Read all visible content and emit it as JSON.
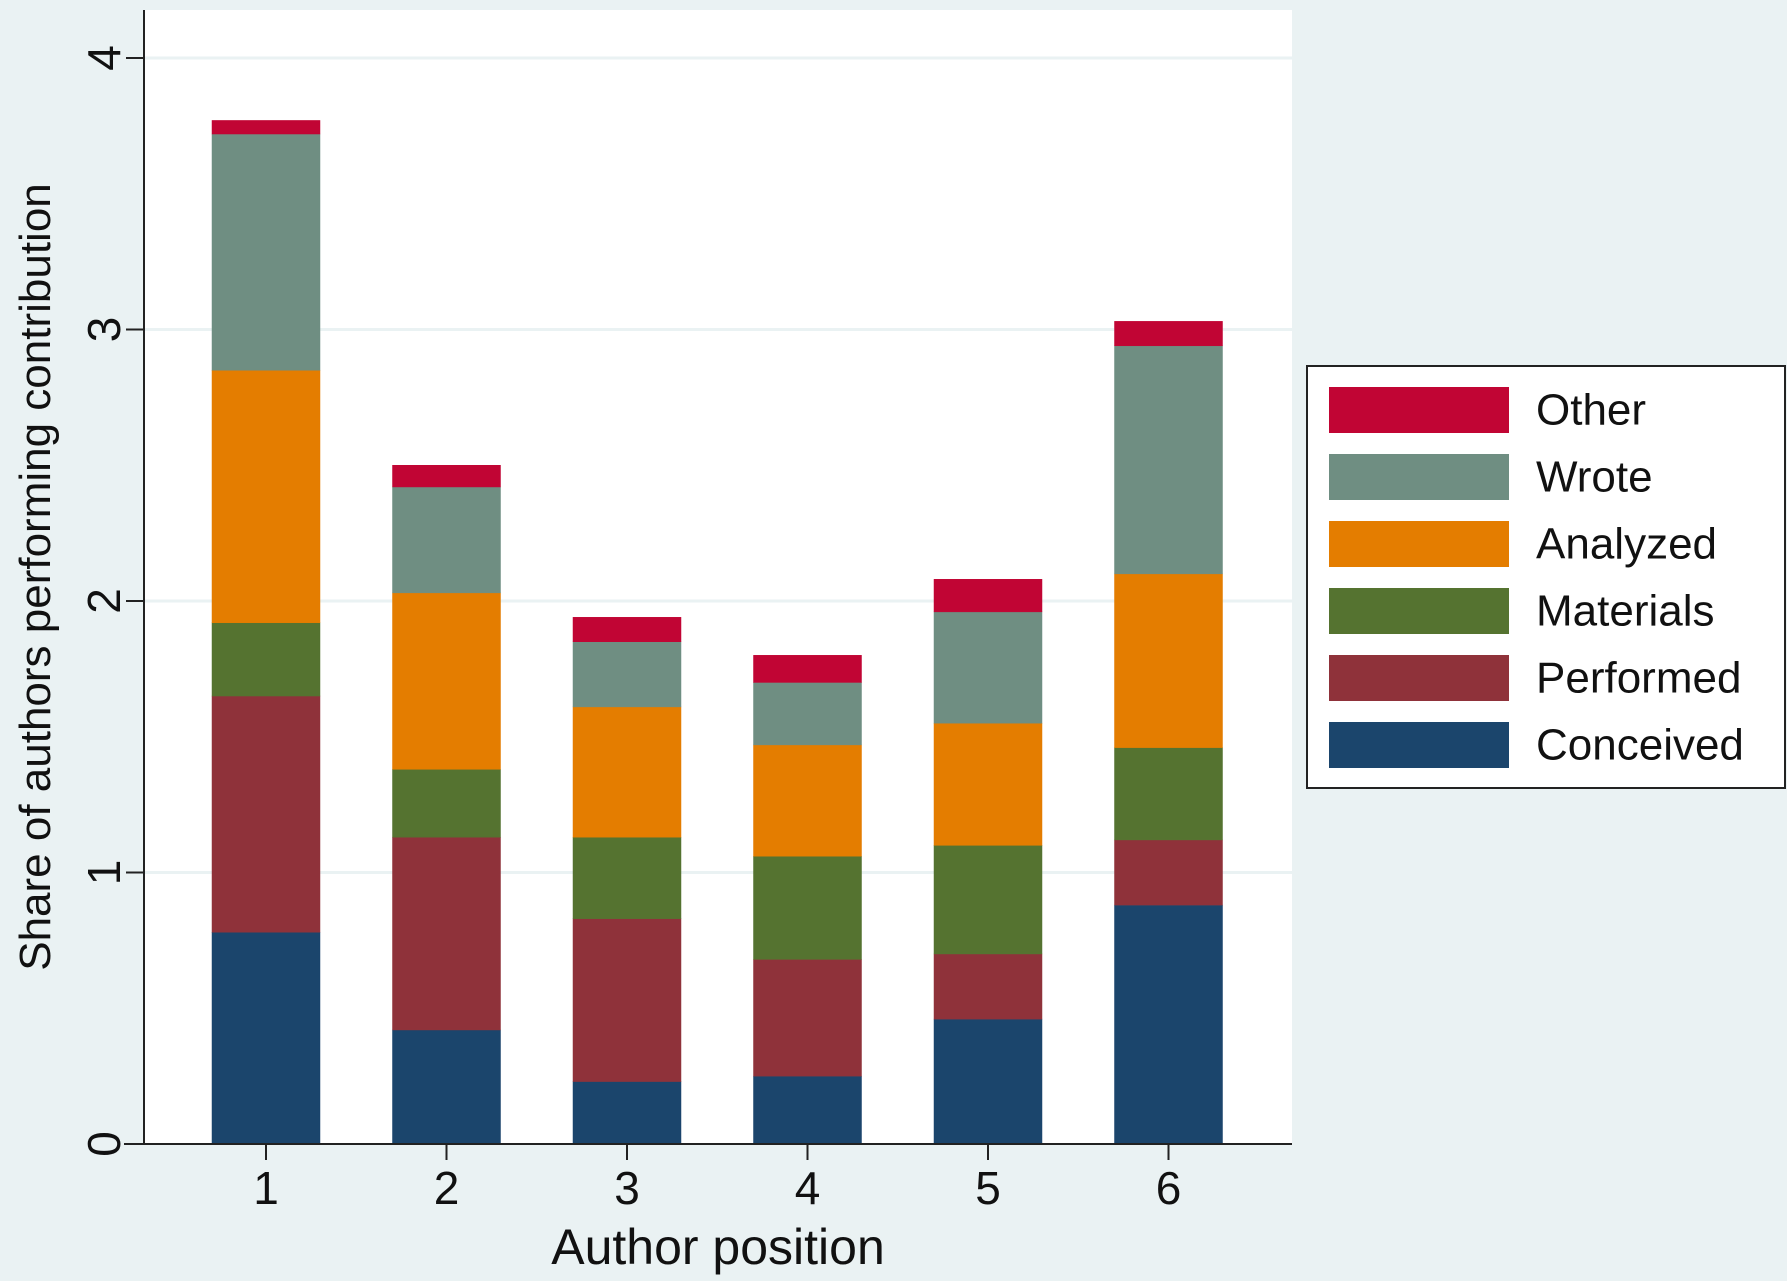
{
  "chart_data": {
    "type": "bar",
    "stacked": true,
    "categories": [
      "1",
      "2",
      "3",
      "4",
      "5",
      "6"
    ],
    "series": [
      {
        "name": "Conceived",
        "color": "#1b456c",
        "values": [
          0.78,
          0.42,
          0.23,
          0.25,
          0.46,
          0.88
        ]
      },
      {
        "name": "Performed",
        "color": "#8f323a",
        "values": [
          0.87,
          0.71,
          0.6,
          0.43,
          0.24,
          0.24
        ]
      },
      {
        "name": "Materials",
        "color": "#557330",
        "values": [
          0.27,
          0.25,
          0.3,
          0.38,
          0.4,
          0.34
        ]
      },
      {
        "name": "Analyzed",
        "color": "#e47d00",
        "values": [
          0.93,
          0.65,
          0.48,
          0.41,
          0.45,
          0.64
        ]
      },
      {
        "name": "Wrote",
        "color": "#6f8e82",
        "values": [
          0.87,
          0.39,
          0.24,
          0.23,
          0.41,
          0.84
        ]
      },
      {
        "name": "Other",
        "color": "#c10534",
        "values": [
          0.05,
          0.08,
          0.09,
          0.1,
          0.12,
          0.09
        ]
      }
    ],
    "xlabel": "Author position",
    "ylabel": "Share of authors performing contribution",
    "ylim": [
      0,
      4.2
    ],
    "yticks": [
      0,
      1,
      2,
      3,
      4
    ],
    "grid": true,
    "legend": {
      "placement": "right",
      "order": [
        "Other",
        "Wrote",
        "Analyzed",
        "Materials",
        "Performed",
        "Conceived"
      ]
    }
  }
}
